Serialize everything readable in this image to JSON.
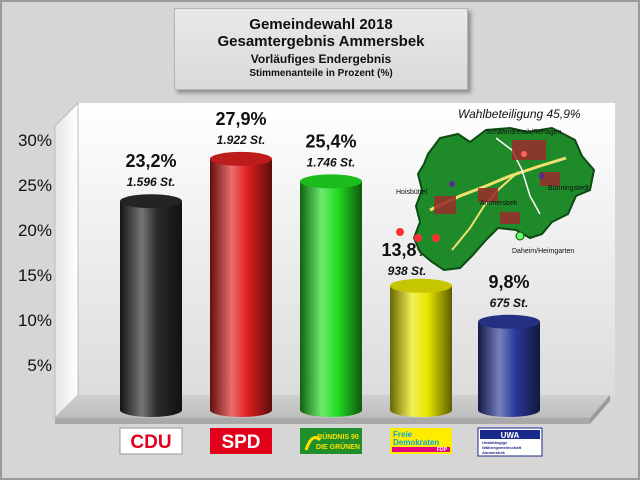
{
  "header": {
    "title": "Gemeindewahl 2018",
    "subtitle": "Gesamtergebnis Ammersbek",
    "status": "Vorläufiges Endergebnis",
    "unit": "Stimmenanteile in Prozent (%)"
  },
  "turnout": "Wahlbeteiligung 45,9%",
  "map": {
    "labels": [
      "Schäferdresch/Rehagen",
      "Hoisbüttel",
      "Ammersbek",
      "Bünningstedt",
      "Daheim/Heimgarten"
    ]
  },
  "logos": {
    "cdu": "CDU",
    "spd": "SPD",
    "gruene": [
      "BÜNDNIS 90",
      "DIE GRÜNEN"
    ],
    "fdp": [
      "Freie",
      "Demokraten",
      "FDP"
    ],
    "uwa": [
      "UWA",
      "Unabhängige",
      "Wählergemeinschaft",
      "Ammersbek"
    ]
  },
  "colors": {
    "cdu": "#2a2a2a",
    "spd": "#e02020",
    "gruene": "#22dd22",
    "fdp": "#e8e800",
    "uwa": "#2a3a9a"
  },
  "chart_data": {
    "type": "bar",
    "categories": [
      "CDU",
      "SPD",
      "BÜNDNIS 90 DIE GRÜNEN",
      "FDP",
      "UWA"
    ],
    "values": [
      23.2,
      27.9,
      25.4,
      13.8,
      9.8
    ],
    "value_labels": [
      "23,2%",
      "27,9%",
      "25,4%",
      "13,8%",
      "9,8%"
    ],
    "votes": [
      "1.596 St.",
      "1.922 St.",
      "1.746 St.",
      "938 St.",
      "675 St."
    ],
    "yticks": [
      "5%",
      "10%",
      "15%",
      "20%",
      "25%",
      "30%"
    ],
    "ylim": [
      0,
      31
    ],
    "grid": false,
    "legend": "none"
  }
}
